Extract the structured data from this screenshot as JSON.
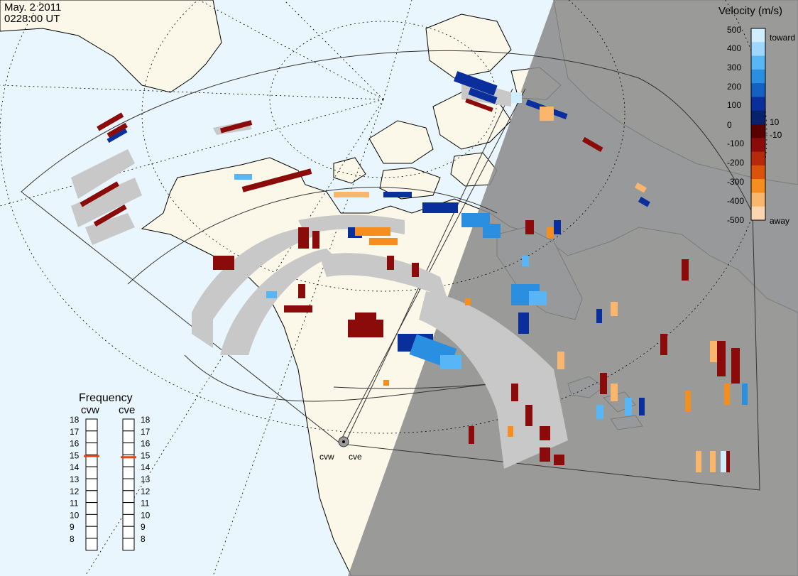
{
  "header": {
    "date": "May. 2 2011",
    "time": "0228:00 UT"
  },
  "colors": {
    "ocean": "#eaf6fd",
    "land": "#fbf8e9",
    "night": "#8c8c8c",
    "ground_scatter": "#c8c8c8",
    "coast": "#000000",
    "grid": "#000000"
  },
  "radars": [
    {
      "code": "cvw",
      "frequency_mhz": 14.9
    },
    {
      "code": "cve",
      "frequency_mhz": 14.8
    }
  ],
  "legend": {
    "title": "Velocity (m/s)",
    "ticks": [
      "500",
      "400",
      "300",
      "200",
      "100",
      "10",
      "0",
      "-10",
      "-100",
      "-200",
      "-300",
      "-400",
      "-500"
    ],
    "label_toward": "toward",
    "label_away": "away",
    "colors": [
      "#cfeeff",
      "#9fd6ff",
      "#59b6f6",
      "#2a8fe0",
      "#1461c4",
      "#0a2f9c",
      "#06216e",
      "#5a0000",
      "#8b0a0a",
      "#b52a0a",
      "#d9530a",
      "#f58d1f",
      "#fbb66e",
      "#fcd6b0"
    ]
  },
  "frequency": {
    "title": "Frequency",
    "scale": [
      "18",
      "17",
      "16",
      "15",
      "14",
      "13",
      "12",
      "11",
      "10",
      "9",
      "8"
    ]
  },
  "icons": {
    "radar_site": "radar-site-icon"
  }
}
